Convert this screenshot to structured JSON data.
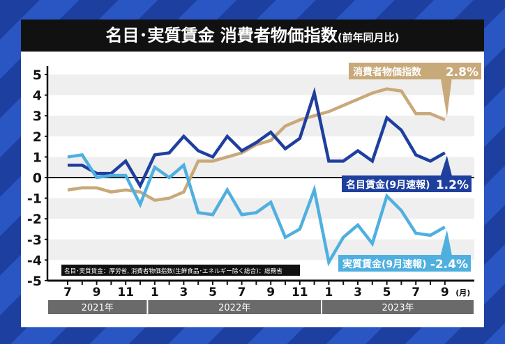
{
  "title": "名目･実質賃金 消費者物価指数",
  "title_suffix": "(前年同月比)",
  "source": "名目･実質賃金：厚労省, 消費者物価指数(生鮮食品･エネルギー除く総合)：総務省",
  "chart_data": {
    "type": "line",
    "ylim": [
      -5,
      5
    ],
    "yticks": [
      "5",
      "4",
      "3",
      "2",
      "1",
      "0",
      "-1",
      "-2",
      "-3",
      "-4",
      "-5"
    ],
    "x": [
      "2021-07",
      "2021-08",
      "2021-09",
      "2021-10",
      "2021-11",
      "2021-12",
      "2022-01",
      "2022-02",
      "2022-03",
      "2022-04",
      "2022-05",
      "2022-06",
      "2022-07",
      "2022-08",
      "2022-09",
      "2022-10",
      "2022-11",
      "2022-12",
      "2023-01",
      "2023-02",
      "2023-03",
      "2023-04",
      "2023-05",
      "2023-06",
      "2023-07",
      "2023-08",
      "2023-09"
    ],
    "xtick_labels": [
      "7",
      "",
      "9",
      "",
      "11",
      "",
      "1",
      "",
      "3",
      "",
      "5",
      "",
      "7",
      "",
      "9",
      "",
      "11",
      "",
      "1",
      "",
      "3",
      "",
      "5",
      "",
      "7",
      "",
      "9"
    ],
    "x_unit": "(月)",
    "years": [
      "2021年",
      "2022年",
      "2023年"
    ],
    "grid": "horizontal bands",
    "series": [
      {
        "name": "消費者物価指数",
        "label_value": "2.8%",
        "color": "#c8a97a",
        "values": [
          -0.6,
          -0.5,
          -0.5,
          -0.7,
          -0.6,
          -0.7,
          -1.1,
          -1.0,
          -0.7,
          0.8,
          0.8,
          1.0,
          1.2,
          1.6,
          1.8,
          2.5,
          2.8,
          3.0,
          3.2,
          3.5,
          3.8,
          4.1,
          4.3,
          4.2,
          3.1,
          3.1,
          2.8
        ]
      },
      {
        "name": "名目賃金(9月速報)",
        "label_value": "1.2%",
        "color": "#1f3f9f",
        "values": [
          0.6,
          0.6,
          0.2,
          0.2,
          0.8,
          -0.4,
          1.1,
          1.2,
          2.0,
          1.3,
          1.0,
          2.0,
          1.3,
          1.7,
          2.2,
          1.4,
          1.9,
          4.1,
          0.8,
          0.8,
          1.3,
          0.8,
          2.9,
          2.3,
          1.1,
          0.8,
          1.2
        ]
      },
      {
        "name": "実質賃金(9月速報)",
        "label_value": "-2.4%",
        "color": "#4fb0e0",
        "values": [
          1.0,
          1.1,
          0.0,
          0.1,
          0.1,
          -1.3,
          0.5,
          0.0,
          0.6,
          -1.7,
          -1.8,
          -0.6,
          -1.8,
          -1.7,
          -1.2,
          -2.9,
          -2.5,
          -0.6,
          -4.1,
          -2.9,
          -2.3,
          -3.2,
          -0.9,
          -1.6,
          -2.7,
          -2.8,
          -2.4
        ]
      }
    ]
  }
}
